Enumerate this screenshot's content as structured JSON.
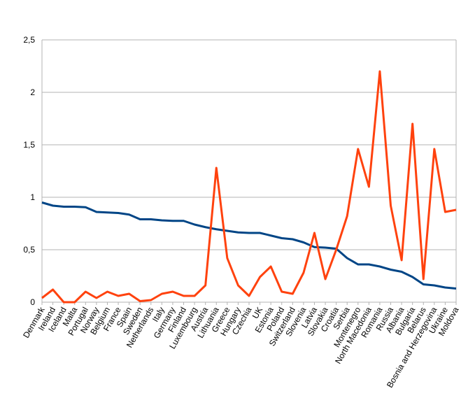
{
  "chart_data": {
    "type": "line",
    "categories": [
      "Denmark",
      "Ireland",
      "Iceland",
      "Malta",
      "Portugal",
      "Norway",
      "Belgium",
      "France",
      "Spain",
      "Sweden",
      "Netherlands",
      "Italy",
      "Germany",
      "Finland",
      "Luxembourg",
      "Austria",
      "Lithuania",
      "Greece",
      "Hungary",
      "Czechia",
      "UK",
      "Estonia",
      "Poland",
      "Switzerland",
      "Slovenia",
      "Latvia",
      "Slovakia",
      "Croatia",
      "Serbia",
      "Montenegro",
      "North Macedonia",
      "Romania",
      "Russia",
      "Albania",
      "Bulgaria",
      "Belarus",
      "Bosnia and Herzegovina",
      "Ukraine",
      "Moldova"
    ],
    "series": [
      {
        "color": "#004586",
        "values": [
          0.95,
          0.92,
          0.91,
          0.91,
          0.905,
          0.86,
          0.855,
          0.85,
          0.835,
          0.79,
          0.79,
          0.78,
          0.775,
          0.775,
          0.74,
          0.715,
          0.695,
          0.68,
          0.665,
          0.66,
          0.66,
          0.635,
          0.61,
          0.6,
          0.57,
          0.525,
          0.52,
          0.51,
          0.42,
          0.36,
          0.36,
          0.34,
          0.31,
          0.29,
          0.24,
          0.17,
          0.16,
          0.14,
          0.13
        ]
      },
      {
        "color": "#ff420e",
        "values": [
          0.04,
          0.12,
          0,
          0,
          0.1,
          0.04,
          0.1,
          0.06,
          0.08,
          0.01,
          0.02,
          0.08,
          0.1,
          0.06,
          0.06,
          0.16,
          1.28,
          0.42,
          0.16,
          0.06,
          0.24,
          0.34,
          0.1,
          0.08,
          0.28,
          0.66,
          0.22,
          0.5,
          0.82,
          1.46,
          1.1,
          2.2,
          0.92,
          0.4,
          1.7,
          0.22,
          1.46,
          0.86,
          0.88
        ]
      }
    ],
    "ylim": [
      0,
      2.5
    ],
    "yticks": [
      0,
      {
        "value": 0.5,
        "label": "0,5"
      },
      1,
      {
        "value": 1.5,
        "label": "1,5"
      },
      2,
      {
        "value": 2.5,
        "label": "2,5"
      }
    ],
    "grid": true
  }
}
